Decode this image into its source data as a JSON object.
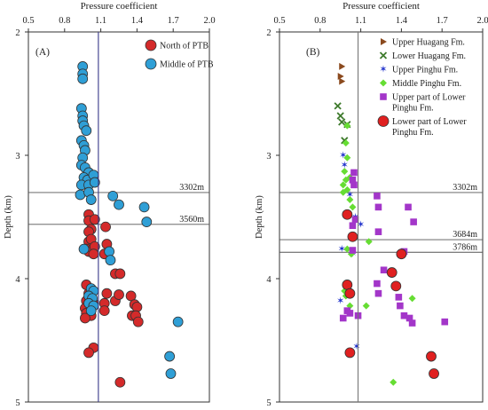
{
  "chart_data": [
    {
      "type": "scatter",
      "panel_label": "(A)",
      "xlabel": "Pressure coefficient",
      "ylabel": "Depth (km)",
      "xlim": [
        0.5,
        2.0
      ],
      "ylim": [
        2,
        5
      ],
      "xticks": [
        "0.5",
        "0.8",
        "1.1",
        "1.4",
        "1.7",
        "2.0"
      ],
      "yticks": [
        "2",
        "3",
        "4",
        "5"
      ],
      "hydrostatic_line_x": 1.08,
      "depth_lines": [
        {
          "depth": 3.302,
          "label": "3302m"
        },
        {
          "depth": 3.56,
          "label": "3560m"
        }
      ],
      "legend_position": "top-right",
      "series": [
        {
          "name": "North of PTB",
          "marker": "circle",
          "color": "#d42a2a",
          "points": [
            [
              1.0,
              3.48
            ],
            [
              1.0,
              3.53
            ],
            [
              1.05,
              3.52
            ],
            [
              1.02,
              3.6
            ],
            [
              1.0,
              3.62
            ],
            [
              1.0,
              3.7
            ],
            [
              1.02,
              3.68
            ],
            [
              1.14,
              3.58
            ],
            [
              0.98,
              3.76
            ],
            [
              1.0,
              3.78
            ],
            [
              1.05,
              3.74
            ],
            [
              1.04,
              3.8
            ],
            [
              1.15,
              3.72
            ],
            [
              1.13,
              3.8
            ],
            [
              1.22,
              3.96
            ],
            [
              1.26,
              3.96
            ],
            [
              0.98,
              4.05
            ],
            [
              1.0,
              4.12
            ],
            [
              0.98,
              4.18
            ],
            [
              1.0,
              4.2
            ],
            [
              1.02,
              4.22
            ],
            [
              0.97,
              4.24
            ],
            [
              1.04,
              4.2
            ],
            [
              0.98,
              4.28
            ],
            [
              1.02,
              4.3
            ],
            [
              0.97,
              4.32
            ],
            [
              1.15,
              4.12
            ],
            [
              1.13,
              4.2
            ],
            [
              1.13,
              4.26
            ],
            [
              1.22,
              4.18
            ],
            [
              1.25,
              4.13
            ],
            [
              1.35,
              4.14
            ],
            [
              1.38,
              4.21
            ],
            [
              1.4,
              4.23
            ],
            [
              1.36,
              4.3
            ],
            [
              1.39,
              4.3
            ],
            [
              1.41,
              4.35
            ],
            [
              1.04,
              4.56
            ],
            [
              1.0,
              4.6
            ],
            [
              1.26,
              4.84
            ]
          ]
        },
        {
          "name": "Middle of PTB",
          "marker": "circle",
          "color": "#2f9fd6",
          "points": [
            [
              0.95,
              2.28
            ],
            [
              0.95,
              2.34
            ],
            [
              0.95,
              2.38
            ],
            [
              0.94,
              2.62
            ],
            [
              0.95,
              2.68
            ],
            [
              0.95,
              2.72
            ],
            [
              0.96,
              2.76
            ],
            [
              0.98,
              2.8
            ],
            [
              0.94,
              2.88
            ],
            [
              0.96,
              2.92
            ],
            [
              0.97,
              2.96
            ],
            [
              0.95,
              3.02
            ],
            [
              0.94,
              3.08
            ],
            [
              0.97,
              3.1
            ],
            [
              1.0,
              3.14
            ],
            [
              0.96,
              3.18
            ],
            [
              0.99,
              3.2
            ],
            [
              1.04,
              3.16
            ],
            [
              0.94,
              3.24
            ],
            [
              1.0,
              3.24
            ],
            [
              1.05,
              3.22
            ],
            [
              0.93,
              3.32
            ],
            [
              1.0,
              3.3
            ],
            [
              1.02,
              3.36
            ],
            [
              1.2,
              3.33
            ],
            [
              1.25,
              3.4
            ],
            [
              1.46,
              3.42
            ],
            [
              1.48,
              3.54
            ],
            [
              0.96,
              3.76
            ],
            [
              1.17,
              3.78
            ],
            [
              1.18,
              3.85
            ],
            [
              1.02,
              4.08
            ],
            [
              1.04,
              4.1
            ],
            [
              1.0,
              4.14
            ],
            [
              1.03,
              4.16
            ],
            [
              1.0,
              4.2
            ],
            [
              1.04,
              4.22
            ],
            [
              1.02,
              4.26
            ],
            [
              1.74,
              4.35
            ],
            [
              1.67,
              4.63
            ],
            [
              1.68,
              4.77
            ]
          ]
        }
      ]
    },
    {
      "type": "scatter",
      "panel_label": "(B)",
      "xlabel": "Pressure coefficient",
      "ylabel": "Depth (km)",
      "xlim": [
        0.5,
        2.0
      ],
      "ylim": [
        2,
        5
      ],
      "xticks": [
        "0.5",
        "0.8",
        "1.1",
        "1.4",
        "1.7",
        "2.0"
      ],
      "yticks": [
        "2",
        "3",
        "4",
        "5"
      ],
      "hydrostatic_line_x": 1.08,
      "depth_lines": [
        {
          "depth": 3.302,
          "label": "3302m"
        },
        {
          "depth": 3.684,
          "label": "3684m"
        },
        {
          "depth": 3.786,
          "label": "3786m"
        }
      ],
      "legend_position": "top-right",
      "series": [
        {
          "name": "Upper Huagang Fm.",
          "marker": "triangle-right",
          "color": "#8b4a1e",
          "points": [
            [
              0.96,
              2.28
            ],
            [
              0.95,
              2.36
            ],
            [
              0.96,
              2.4
            ]
          ]
        },
        {
          "name": "Lower Huagang Fm.",
          "marker": "x",
          "color": "#3e7a2c",
          "points": [
            [
              0.93,
              2.6
            ],
            [
              0.95,
              2.68
            ],
            [
              0.96,
              2.73
            ],
            [
              0.98,
              2.88
            ],
            [
              1.0,
              2.75
            ]
          ]
        },
        {
          "name": "Upper Pinghu Fm.",
          "marker": "star",
          "color": "#2233cc",
          "points": [
            [
              0.97,
              3.0
            ],
            [
              0.98,
              3.08
            ],
            [
              1.02,
              3.32
            ],
            [
              1.06,
              3.5
            ],
            [
              1.1,
              3.56
            ],
            [
              0.96,
              3.76
            ],
            [
              1.04,
              3.8
            ],
            [
              0.95,
              4.18
            ],
            [
              1.07,
              4.55
            ]
          ]
        },
        {
          "name": "Middle Pinghu Fm.",
          "marker": "diamond",
          "color": "#66dd33",
          "points": [
            [
              1.0,
              2.76
            ],
            [
              0.99,
              2.9
            ],
            [
              1.0,
              3.02
            ],
            [
              0.98,
              3.13
            ],
            [
              0.99,
              3.2
            ],
            [
              1.02,
              3.18
            ],
            [
              0.97,
              3.24
            ],
            [
              1.0,
              3.28
            ],
            [
              0.97,
              3.3
            ],
            [
              1.02,
              3.36
            ],
            [
              1.04,
              3.42
            ],
            [
              1.16,
              3.7
            ],
            [
              1.0,
              3.76
            ],
            [
              1.03,
              3.8
            ],
            [
              0.98,
              4.1
            ],
            [
              0.99,
              4.14
            ],
            [
              1.02,
              4.22
            ],
            [
              1.14,
              4.22
            ],
            [
              1.48,
              4.16
            ],
            [
              1.34,
              4.84
            ]
          ]
        },
        {
          "name": "Upper part of Lower Pinghu Fm.",
          "marker": "square",
          "color": "#a336c9",
          "points": [
            [
              1.05,
              3.14
            ],
            [
              1.04,
              3.2
            ],
            [
              1.05,
              3.24
            ],
            [
              1.22,
              3.33
            ],
            [
              1.23,
              3.42
            ],
            [
              1.45,
              3.42
            ],
            [
              1.49,
              3.54
            ],
            [
              1.06,
              3.52
            ],
            [
              1.04,
              3.57
            ],
            [
              1.23,
              3.62
            ],
            [
              1.04,
              3.77
            ],
            [
              1.42,
              3.78
            ],
            [
              1.27,
              3.93
            ],
            [
              1.23,
              4.12
            ],
            [
              1.22,
              4.04
            ],
            [
              1.38,
              4.15
            ],
            [
              1.39,
              4.22
            ],
            [
              1.0,
              4.26
            ],
            [
              1.02,
              4.28
            ],
            [
              1.08,
              4.3
            ],
            [
              1.42,
              4.3
            ],
            [
              1.46,
              4.32
            ],
            [
              1.48,
              4.36
            ],
            [
              1.72,
              4.35
            ],
            [
              0.97,
              4.32
            ]
          ]
        },
        {
          "name": "Lower part of Lower Pinghu Fm.",
          "marker": "circle",
          "color": "#e02020",
          "points": [
            [
              1.0,
              3.48
            ],
            [
              1.04,
              3.66
            ],
            [
              1.4,
              3.8
            ],
            [
              1.33,
              3.95
            ],
            [
              1.0,
              4.05
            ],
            [
              1.02,
              4.12
            ],
            [
              1.36,
              4.06
            ],
            [
              1.02,
              4.6
            ],
            [
              1.62,
              4.63
            ],
            [
              1.64,
              4.77
            ]
          ]
        }
      ]
    }
  ]
}
